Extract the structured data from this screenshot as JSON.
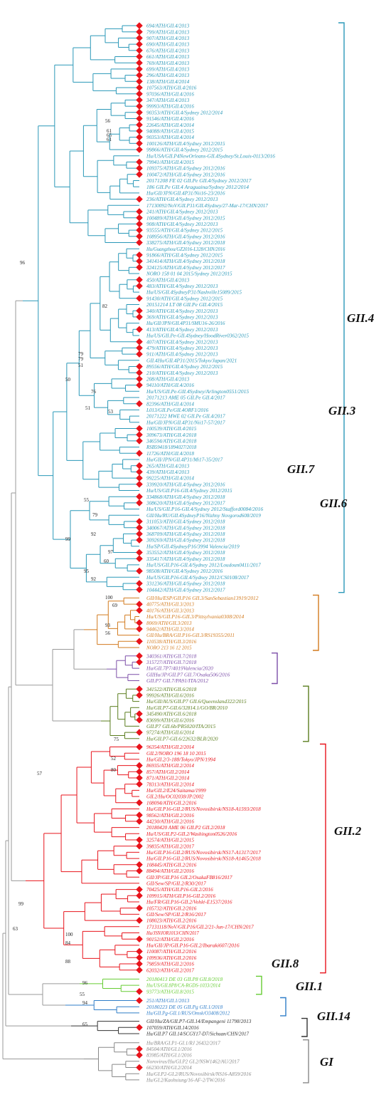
{
  "colors": {
    "GII.4": "#2a98b8",
    "GII.3": "#d27a1e",
    "GII.7": "#7c4ea8",
    "GII.6": "#5a7d1e",
    "GII.2": "#e8141c",
    "GII.8": "#66cc33",
    "GII.1": "#2f7dc8",
    "GII.14": "#333333",
    "GI": "#888888",
    "marker": "#e8141c"
  },
  "groups": [
    {
      "name": "GII.4",
      "label": "GII.4"
    },
    {
      "name": "GII.3",
      "label": "GII.3"
    },
    {
      "name": "GII.7",
      "label": "GII.7"
    },
    {
      "name": "GII.6",
      "label": "GII.6"
    },
    {
      "name": "GII.2",
      "label": "GII.2"
    },
    {
      "name": "GII.8",
      "label": "GII.8"
    },
    {
      "name": "GII.1",
      "label": "GII.1"
    },
    {
      "name": "GII.14",
      "label": "GII.14"
    },
    {
      "name": "GI",
      "label": "GI"
    }
  ],
  "tips": [
    {
      "label": "694/ATH/GII.4/2013",
      "g": "GII.4",
      "m": true
    },
    {
      "label": "799/ATH/GII.4/2013",
      "g": "GII.4",
      "m": true
    },
    {
      "label": "907/ATH/GII.4/2013",
      "g": "GII.4",
      "m": true
    },
    {
      "label": "690/ATH/GII.4/2013",
      "g": "GII.4",
      "m": true
    },
    {
      "label": "676/ATH/GII.4/2013",
      "g": "GII.4",
      "m": true
    },
    {
      "label": "661/ATH/GII.4/2013",
      "g": "GII.4",
      "m": true
    },
    {
      "label": "769/ATH/GII.4/2013",
      "g": "GII.4",
      "m": true
    },
    {
      "label": "699/ATH/GII.4/2013",
      "g": "GII.4",
      "m": true
    },
    {
      "label": "296/ATH/GII.4/2013",
      "g": "GII.4",
      "m": true
    },
    {
      "label": "138/ATH/GII.4/2014",
      "g": "GII.4",
      "m": true
    },
    {
      "label": "107563/ATH/GII.4/2016",
      "g": "GII.4",
      "m": true
    },
    {
      "label": "97036/ATH/GII.4/2016",
      "g": "GII.4",
      "m": true
    },
    {
      "label": "347/ATH/GII.4/2013",
      "g": "GII.4",
      "m": true
    },
    {
      "label": "99993/ATH/GII.4/2016",
      "g": "GII.4",
      "m": true
    },
    {
      "label": "90353/ATH/GII.4/Sydney 2012/2014",
      "g": "GII.4",
      "m": true
    },
    {
      "label": "91546/ATH/GII.4/2016",
      "g": "GII.4",
      "m": true
    },
    {
      "label": "22645/ATH/GII.4/2014",
      "g": "GII.4",
      "m": true
    },
    {
      "label": "94088/ATH/GII.4/2015",
      "g": "GII.4",
      "m": true
    },
    {
      "label": "90353/ATH/GII.4/2014",
      "g": "GII.4",
      "m": true
    },
    {
      "label": "100126/ATH/GII.4/Sydney 2012/2015",
      "g": "GII.4",
      "m": true
    },
    {
      "label": "99866/ATH/GII.4/Sydney 2012/2015",
      "g": "GII.4",
      "m": true
    },
    {
      "label": "Hu/USA/GII.P4NewOrleans-GII.4Sydney/St.Louis-0113/2016",
      "g": "GII.4",
      "m": false
    },
    {
      "label": "79941/ATH/GII.4/2015",
      "g": "GII.4",
      "m": true
    },
    {
      "label": "109375/ATH/GII.4/Sydney 2012/2016",
      "g": "GII.4",
      "m": true
    },
    {
      "label": "100472/ATH/GII.4/Sydney 2012/2016",
      "g": "GII.4",
      "m": true
    },
    {
      "label": "20171208 FE 02 GII.Pe GII.4/Sydney 2012/2017",
      "g": "GII.4",
      "m": false
    },
    {
      "label": "186 GII.Pe GII.4 Araguaina/Sydney 2012/2014",
      "g": "GII.4",
      "m": false
    },
    {
      "label": "Hu/GII/JPN/GII.4P31/Nii16-23/2016",
      "g": "GII.4",
      "m": false
    },
    {
      "label": "236/ATH/GII.4/Sydney 2012/2013",
      "g": "GII.4",
      "m": true
    },
    {
      "label": "17130092/NoV/GII.P31/GII.4Sydney/27-Mar-17/CHN/2017",
      "g": "GII.4",
      "m": false
    },
    {
      "label": "241/ATH/GII.4/Sydney 2012/2013",
      "g": "GII.4",
      "m": true
    },
    {
      "label": "100489/ATH/GII.4/Sydney 2012/2015",
      "g": "GII.4",
      "m": true
    },
    {
      "label": "908/ATH/GII.4/Sydney 2012/2013",
      "g": "GII.4",
      "m": true
    },
    {
      "label": "93555/ATH/GII.4/Sydney 2012/2015",
      "g": "GII.4",
      "m": true
    },
    {
      "label": "108956/ATH/GII.4/Sydney 2012/2016",
      "g": "GII.4",
      "m": true
    },
    {
      "label": "338275/ATH/GII.4/Sydney 2012/2018",
      "g": "GII.4",
      "m": true
    },
    {
      "label": "Hu/Guangzhou/GZ2016-L328/CHN/2016",
      "g": "GII.4",
      "m": false
    },
    {
      "label": "91866/ATH/GII.4/Sydney 2012/2015",
      "g": "GII.4",
      "m": true
    },
    {
      "label": "341414/ATH/GII.4/Sydney 2012/2018",
      "g": "GII.4",
      "m": true
    },
    {
      "label": "324125/ATH/GII.4/Sydney 2012/2017",
      "g": "GII.4",
      "m": true
    },
    {
      "label": "NORO 158 01 04 2015/Sydney 2012/2015",
      "g": "GII.4",
      "m": false
    },
    {
      "label": "450/ATH/GII.4/2013",
      "g": "GII.4",
      "m": true
    },
    {
      "label": "483/ATH/GII.4/Sydney 2012/2013",
      "g": "GII.4",
      "m": true
    },
    {
      "label": "Hu/US/GII.4SydneyP31/Nashville15089/2015",
      "g": "GII.4",
      "m": false
    },
    {
      "label": "91430/ATH/GII.4/Sydney 2012/2015",
      "g": "GII.4",
      "m": true
    },
    {
      "label": "20151214 LT 08 GII.Pe GII.4/2015",
      "g": "GII.4",
      "m": false
    },
    {
      "label": "340/ATH/GII.4/Sydney 2012/2013",
      "g": "GII.4",
      "m": true
    },
    {
      "label": "369/ATH/GII.4/Sydney 2012/2013",
      "g": "GII.4",
      "m": true
    },
    {
      "label": "Hu/GII/JPN/GII.4P31/SMU16-26/2016",
      "g": "GII.4",
      "m": false
    },
    {
      "label": "413/ATH/GII.4/Sydney 2012/2013",
      "g": "GII.4",
      "m": true
    },
    {
      "label": "Hu/US/GII.Pe-GII.4Sydney/HoodRiver0362/2015",
      "g": "GII.4",
      "m": false
    },
    {
      "label": "407/ATH/GII.4/Sydney 2012/2013",
      "g": "GII.4",
      "m": true
    },
    {
      "label": "479/ATH/GII.4/Sydney 2012/2013",
      "g": "GII.4",
      "m": true
    },
    {
      "label": "911/ATH/GII.4/Sydney 2012/2013",
      "g": "GII.4",
      "m": true
    },
    {
      "label": "GII.4Hu/GII.4P31/2015/Tokyo/Japan/2021",
      "g": "GII.4",
      "m": false
    },
    {
      "label": "89556/ATH/GII.4/Sydney 2012/2015",
      "g": "GII.4",
      "m": true
    },
    {
      "label": "210/ATH/GII.4/Sydney 2012/2013",
      "g": "GII.4",
      "m": true
    },
    {
      "label": "208/ATH/GII.4/2013",
      "g": "GII.4",
      "m": true
    },
    {
      "label": "94110/ATH/GII.4/2016",
      "g": "GII.4",
      "m": true
    },
    {
      "label": "Hu/US/GII.Pe-GII.4Sydney/Arlington0551/2015",
      "g": "GII.4",
      "m": false
    },
    {
      "label": "20171213 AME 05 GII.Pe GII.4/2017",
      "g": "GII.4",
      "m": false
    },
    {
      "label": "82396/ATH/GII.4/2014",
      "g": "GII.4",
      "m": true
    },
    {
      "label": "L013/GII.Pe/GII.4ORF1/2016",
      "g": "GII.4",
      "m": false
    },
    {
      "label": "20171222 MWE 02 GII.Pe GII.4/2017",
      "g": "GII.4",
      "m": false
    },
    {
      "label": "Hu/GII/JPN/GII.4P31/Nii17-57/2017",
      "g": "GII.4",
      "m": false
    },
    {
      "label": "100539/ATH/GII.4/2015",
      "g": "GII.4",
      "m": true
    },
    {
      "label": "309673/ATH/GII.4/2018",
      "g": "GII.4",
      "m": true
    },
    {
      "label": "346594/ATH/GII.4/2018",
      "g": "GII.4",
      "m": true
    },
    {
      "label": "RSB59418/1894027/2018",
      "g": "GII.4",
      "m": false
    },
    {
      "label": "11726/ATH/GII.4/2018",
      "g": "GII.4",
      "m": true
    },
    {
      "label": "Hu/GII/JPN/GII.4P31/Mi17-35/2017",
      "g": "GII.4",
      "m": false
    },
    {
      "label": "265/ATH/GII.4/2013",
      "g": "GII.4",
      "m": true
    },
    {
      "label": "439/ATH/GII.4/2013",
      "g": "GII.4",
      "m": true
    },
    {
      "label": "99225/ATH/GII.4/2014",
      "g": "GII.4",
      "m": true
    },
    {
      "label": "339920/ATH/GII.4/Sydney 2012/2016",
      "g": "GII.4",
      "m": true
    },
    {
      "label": "Hu/US/GII.P16-GII.4/Sydney 2012/2015",
      "g": "GII.4",
      "m": false
    },
    {
      "label": "334868/ATH/GII.4/Sydney 2012/2018",
      "g": "GII.4",
      "m": true
    },
    {
      "label": "308620/ATH/GII.4/Sydney 2012/2017",
      "g": "GII.4",
      "m": true
    },
    {
      "label": "Hu/US/GII.P16-GII.4/Sydney 2012/Stafford0084/2016",
      "g": "GII.4",
      "m": false
    },
    {
      "label": "GII/Hu/RU/GII.4SydneyP16/Nizhny Novgorod608/2019",
      "g": "GII.4",
      "m": false
    },
    {
      "label": "311053/ATH/GII.4/Sydney 2012/2018",
      "g": "GII.4",
      "m": true
    },
    {
      "label": "340067/ATH/GII.4/Sydney 2012/2018",
      "g": "GII.4",
      "m": true
    },
    {
      "label": "368709/ATH/GII.4/Sydney 2012/2018",
      "g": "GII.4",
      "m": true
    },
    {
      "label": "309269/ATH/GII.4/Sydney 2012/2018",
      "g": "GII.4",
      "m": true
    },
    {
      "label": "Hu/SP/GII.4SydneyP16/3994 Valencia/2019",
      "g": "GII.4",
      "m": false
    },
    {
      "label": "353552/ATH/GII.4/Sydney 2012/2018",
      "g": "GII.4",
      "m": true
    },
    {
      "label": "335417/ATH/GII.4/Sydney 2012/2018",
      "g": "GII.4",
      "m": true
    },
    {
      "label": "Hu/US/GII.P16-GII.4/Sydney 2012/Loudoun0411/2017",
      "g": "GII.4",
      "m": false
    },
    {
      "label": "98508/ATH/GII.4/Sydney 2012/2016",
      "g": "GII.4",
      "m": true
    },
    {
      "label": "Hu/US/GII.P16-GII.4/Sydney 2012/CS0108/2017",
      "g": "GII.4",
      "m": false
    },
    {
      "label": "331236/ATH/GII.4/Sydney 2012/2018",
      "g": "GII.4",
      "m": true
    },
    {
      "label": "104442/ATH/GII.4/Sydney 2012/2017",
      "g": "GII.4",
      "m": true
    },
    {
      "label": "GII/Hu/ESP/GII.P16 GII.3/SanSebastian13919/2012",
      "g": "GII.3",
      "m": false
    },
    {
      "label": "40775/ATH/GII.3/2013",
      "g": "GII.3",
      "m": true
    },
    {
      "label": "40176/ATH/GII.3/2013",
      "g": "GII.3",
      "m": true
    },
    {
      "label": "Hu/US/GII.P16-GII.3/Pittsylvania0308/2014",
      "g": "GII.3",
      "m": false
    },
    {
      "label": "8069/ATH/GII.3/2013",
      "g": "GII.3",
      "m": true
    },
    {
      "label": "94462/ATH/GII.3/2014",
      "g": "GII.3",
      "m": true
    },
    {
      "label": "GII/Hu/BRA/GII.P16-GII.3/RS19355/2011",
      "g": "GII.3",
      "m": false
    },
    {
      "label": "110538/ATH/GII.3/2016",
      "g": "GII.3",
      "m": true
    },
    {
      "label": "NORO 213 16 12 2015",
      "g": "GII.3",
      "m": false
    },
    {
      "label": "340361/ATH/GII.7/2018",
      "g": "GII.7",
      "m": true
    },
    {
      "label": "315727/ATH/GII.7/2018",
      "g": "GII.7",
      "m": true
    },
    {
      "label": "Hu/GII.7P7/4019Valencia/2020",
      "g": "GII.7",
      "m": false
    },
    {
      "label": "GIIHu/JP/GII.P7 GII.7/Osaka506/2016",
      "g": "GII.7",
      "m": false
    },
    {
      "label": "GII.P7 GII.7/PA91/ITA/2012",
      "g": "GII.7",
      "m": false
    },
    {
      "label": "341522/ATH/GII.6/2018",
      "g": "GII.6",
      "m": true
    },
    {
      "label": "99926/ATH/GII.6/2016",
      "g": "GII.6",
      "m": true
    },
    {
      "label": "Hu/GII/AUS/GII.P7 GII.6/Queensland322/2015",
      "g": "GII.6",
      "m": false
    },
    {
      "label": "Hu/GII.P7-GII.6/32814.1/GO/BR/2010",
      "g": "GII.6",
      "m": false
    },
    {
      "label": "345490/ATH/GII.6/2018",
      "g": "GII.6",
      "m": true
    },
    {
      "label": "83699/ATH/GII.6/2016",
      "g": "GII.6",
      "m": true
    },
    {
      "label": "GII.P7 GII.6b/PR5020/ITA/2015",
      "g": "GII.6",
      "m": false
    },
    {
      "label": "97274/ATH/GII.6/2014",
      "g": "GII.6",
      "m": true
    },
    {
      "label": "Hu/GII.P7-GII.6/22632/BLR/2020",
      "g": "GII.6",
      "m": false
    },
    {
      "label": "96354/ATH/GII.2/2014",
      "g": "GII.2",
      "m": true
    },
    {
      "label": "GII.2/NORO 196 18 10 2015",
      "g": "GII.2",
      "m": false
    },
    {
      "label": "Hu/GII.2/3-188/Tokyo/JPN/1994",
      "g": "GII.2",
      "m": false
    },
    {
      "label": "86935/ATH/GII.2/2014",
      "g": "GII.2",
      "m": true
    },
    {
      "label": "857/ATH/GII.2/2014",
      "g": "GII.2",
      "m": true
    },
    {
      "label": "871/ATH/GII.2/2014",
      "g": "GII.2",
      "m": true
    },
    {
      "label": "78313/ATH/GII.2/2014",
      "g": "GII.2",
      "m": true
    },
    {
      "label": "Hu/GII.2/E24/Saitama/1999",
      "g": "GII.2",
      "m": false
    },
    {
      "label": "GII.2/Hu/OC02038/JP/2002",
      "g": "GII.2",
      "m": false
    },
    {
      "label": "108094/ATH/GII.2/2016",
      "g": "GII.2",
      "m": true
    },
    {
      "label": "Hu/GII.P16-GII.2/RUS/Novosibirsk/NS18-A1593/2018",
      "g": "GII.2",
      "m": false
    },
    {
      "label": "98562/ATH/GII.2/2016",
      "g": "GII.2",
      "m": true
    },
    {
      "label": "44230/ATH/GII.2/2016",
      "g": "GII.2",
      "m": true
    },
    {
      "label": "20180420 AME 06 GII.P2 GII.2/2018",
      "g": "GII.2",
      "m": false
    },
    {
      "label": "Hu/US/GII.P2-GII.2/Washington0526/2016",
      "g": "GII.2",
      "m": false
    },
    {
      "label": "32574/ATH/GII.2/2015",
      "g": "GII.2",
      "m": true
    },
    {
      "label": "39835/ATH/GII.2/2017",
      "g": "GII.2",
      "m": true
    },
    {
      "label": "Hu/GII.P16-GII.2/RUS/Novosibirsk/NS17-A1317/2017",
      "g": "GII.2",
      "m": false
    },
    {
      "label": "Hu/GII.P16-GII.2/RUS/Novosibirsk/NS18-A1465/2018",
      "g": "GII.2",
      "m": false
    },
    {
      "label": "108445/ATH/GII.2/2016",
      "g": "GII.2",
      "m": true
    },
    {
      "label": "88494/ATH/GII.2/2016",
      "g": "GII.2",
      "m": true
    },
    {
      "label": "GII/JP/GII.P16 GII.2/OsakaFB816/2017",
      "g": "GII.2",
      "m": false
    },
    {
      "label": "GII/Sew/SP/GII.2/R30/2017",
      "g": "GII.2",
      "m": false
    },
    {
      "label": "70425/ATH/GII.P16-GII.2/2016",
      "g": "GII.2",
      "m": true
    },
    {
      "label": "109915/ATH/GII.P16-GII.2/2016",
      "g": "GII.2",
      "m": true
    },
    {
      "label": "Hu/FR/GII.P16-GII.2/Vohlé-E1537/2016",
      "g": "GII.2",
      "m": false
    },
    {
      "label": "105732/ATH/GII.2/2016",
      "g": "GII.2",
      "m": true
    },
    {
      "label": "GII/Sew/SP/GII.2/R16/2017",
      "g": "GII.2",
      "m": false
    },
    {
      "label": "108023/ATH/GII.2/2016",
      "g": "GII.2",
      "m": true
    },
    {
      "label": "17131118/NoV/GII.P16/GII.2/21-Jun-17/CHN/2017",
      "g": "GII.2",
      "m": false
    },
    {
      "label": "Hu/JSNJOR1013/CHN/2017",
      "g": "GII.2",
      "m": false
    },
    {
      "label": "90152/ATH/GII.2/2016",
      "g": "GII.2",
      "m": true
    },
    {
      "label": "Hu/GII/JP/GII.P16-GII.2/Ibaraki607/2016",
      "g": "GII.2",
      "m": false
    },
    {
      "label": "110087/ATH/GII.2/2016",
      "g": "GII.2",
      "m": true
    },
    {
      "label": "109936/ATH/GII.2/2016",
      "g": "GII.2",
      "m": true
    },
    {
      "label": "79859/ATH/GII.2/2016",
      "g": "GII.2",
      "m": true
    },
    {
      "label": "62032/ATH/GII.2/2017",
      "g": "GII.2",
      "m": true
    },
    {
      "label": "20180413 DE 03 GII.P8 GII.8/2018",
      "g": "GII.8",
      "m": false
    },
    {
      "label": "Hu/US/GII.8P8/CA-RGDS-1033/2014",
      "g": "GII.8",
      "m": false
    },
    {
      "label": "93773/ATH/GII.8/2015",
      "g": "GII.8",
      "m": true
    },
    {
      "label": "251/ATH/GII.1/2013",
      "g": "GII.1",
      "m": true
    },
    {
      "label": "20180223 DE 05 GII.Pg GII.1/2018",
      "g": "GII.1",
      "m": false
    },
    {
      "label": "Hu/GII.Pg-GII.1/RUS/Omsk/O3408/2012",
      "g": "GII.1",
      "m": false
    },
    {
      "label": "GII/Hu/ZA/GII.P7-GII.14/Empangeni 11798/2013",
      "g": "GII.14",
      "m": false
    },
    {
      "label": "107059/ATH/GII.14/2016",
      "g": "GII.14",
      "m": true
    },
    {
      "label": "Hu/GII.P7 GII.14/SCGY17-D7/Sichuan/CHN/2017",
      "g": "GII.14",
      "m": false
    },
    {
      "label": "Hu/BRA/GI.P1-GI.1/RJ 26432/2017",
      "g": "GI",
      "m": false
    },
    {
      "label": "84504/ATH/GI.1/2016",
      "g": "GI",
      "m": true
    },
    {
      "label": "83985/ATH/GI.1/2016",
      "g": "GI",
      "m": true
    },
    {
      "label": "Norovirus/Hu/GI.P2 GI.2/NSW1462/AU/2017",
      "g": "GI",
      "m": false
    },
    {
      "label": "66230/ATH/GI.2/2014",
      "g": "GI",
      "m": true
    },
    {
      "label": "Hu/GI.P2-GI.2/RUS/Novosibirsk/NS16-A859/2016",
      "g": "GI",
      "m": false
    },
    {
      "label": "Hu/GI.2/Kaohsiung/16-AF-2/TW/2016",
      "g": "GI",
      "m": false
    }
  ],
  "support_values": [
    "56",
    "61",
    "65",
    "61",
    "82",
    "96",
    "79",
    "79",
    "51",
    "50",
    "76",
    "51",
    "53",
    "55",
    "79",
    "92",
    "99",
    "97",
    "60",
    "95",
    "92",
    "100",
    "69",
    "93",
    "56",
    "75",
    "52",
    "80",
    "57",
    "99",
    "63",
    "100",
    "84",
    "88",
    "96",
    "55",
    "94",
    "65"
  ]
}
